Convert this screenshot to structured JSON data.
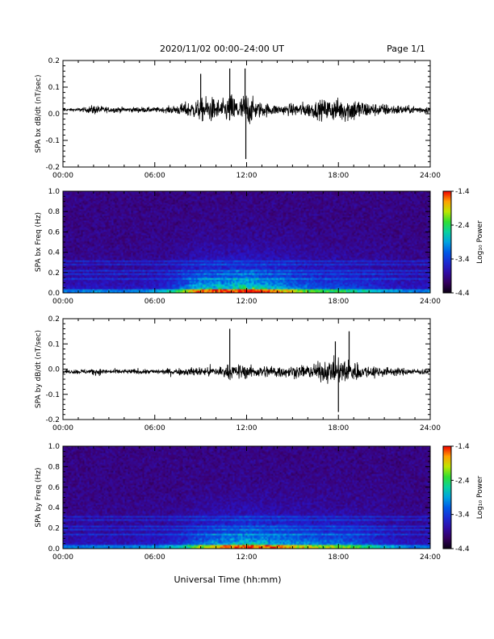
{
  "header": {
    "title": "2020/11/02  00:00–24:00 UT",
    "page": "Page 1/1"
  },
  "footer": {
    "xlabel": "Universal Time (hh:mm)"
  },
  "chart_data": [
    {
      "type": "line",
      "id": "bx-timeseries",
      "ylabel": "SPA bx dB/dt (nT/sec)",
      "xlim": [
        "00:00",
        "24:00"
      ],
      "x_ticks": [
        "00:00",
        "06:00",
        "12:00",
        "18:00",
        "24:00"
      ],
      "ylim": [
        -0.2,
        0.2
      ],
      "y_ticks": [
        "-0.2",
        "-0.1",
        "0.0",
        "0.1",
        "0.2"
      ],
      "color": "#000000",
      "series": [
        {
          "hours": [
            0,
            0.5,
            1,
            1.5,
            2,
            2.5,
            3,
            3.5,
            4,
            4.5,
            5,
            5.5,
            6,
            6.5,
            7,
            7.5,
            8,
            8.5,
            9,
            9.5,
            10,
            10.5,
            11,
            11.5,
            12,
            12.5,
            13,
            13.5,
            14,
            14.5,
            15,
            15.5,
            16,
            16.5,
            17,
            17.5,
            18,
            18.5,
            19,
            19.5,
            20,
            20.5,
            21,
            21.5,
            22,
            22.5,
            23,
            23.5,
            24
          ],
          "envelope": [
            0.01,
            0.01,
            0.015,
            0.02,
            0.04,
            0.03,
            0.02,
            0.025,
            0.02,
            0.02,
            0.025,
            0.02,
            0.02,
            0.02,
            0.03,
            0.04,
            0.06,
            0.07,
            0.09,
            0.11,
            0.09,
            0.08,
            0.13,
            0.09,
            0.15,
            0.08,
            0.06,
            0.05,
            0.04,
            0.04,
            0.05,
            0.06,
            0.06,
            0.07,
            0.08,
            0.09,
            0.09,
            0.1,
            0.1,
            0.08,
            0.06,
            0.05,
            0.05,
            0.04,
            0.04,
            0.03,
            0.03,
            0.03,
            0.03
          ],
          "baseline": 0.015,
          "spikes": [
            {
              "hour": 10.9,
              "value": 0.17
            },
            {
              "hour": 11.9,
              "value": 0.17
            },
            {
              "hour": 11.95,
              "value": -0.17
            },
            {
              "hour": 9.0,
              "value": 0.15
            }
          ]
        }
      ]
    },
    {
      "type": "heatmap",
      "id": "bx-spectrogram",
      "ylabel": "SPA bx Freq (Hz)",
      "xlim": [
        "00:00",
        "24:00"
      ],
      "x_ticks": [
        "00:00",
        "06:00",
        "12:00",
        "18:00",
        "24:00"
      ],
      "ylim": [
        0.0,
        1.0
      ],
      "y_ticks": [
        "0.0",
        "0.2",
        "0.4",
        "0.6",
        "0.8",
        "1.0"
      ],
      "colorbar": {
        "label": "Log₁₀ Power",
        "range": [
          -4.4,
          -1.4
        ],
        "ticks": [
          "-1.4",
          "-2.4",
          "-3.4",
          "-4.4"
        ]
      },
      "activity": {
        "hours": [
          0,
          2,
          4,
          6,
          7,
          8,
          9,
          10,
          11,
          12,
          13,
          14,
          15,
          16,
          17,
          18,
          19,
          20,
          21,
          22,
          23,
          24
        ],
        "level": [
          0.15,
          0.18,
          0.15,
          0.2,
          0.3,
          0.5,
          0.7,
          0.75,
          0.75,
          0.85,
          0.75,
          0.65,
          0.55,
          0.45,
          0.4,
          0.4,
          0.35,
          0.3,
          0.25,
          0.2,
          0.15,
          0.15
        ]
      },
      "bands_hz": [
        0.14,
        0.18,
        0.22,
        0.27,
        0.31
      ]
    },
    {
      "type": "line",
      "id": "by-timeseries",
      "ylabel": "SPA by dB/dt (nT/sec)",
      "xlim": [
        "00:00",
        "24:00"
      ],
      "x_ticks": [
        "00:00",
        "06:00",
        "12:00",
        "18:00",
        "24:00"
      ],
      "ylim": [
        -0.2,
        0.2
      ],
      "y_ticks": [
        "-0.2",
        "-0.1",
        "0.0",
        "0.1",
        "0.2"
      ],
      "color": "#000000",
      "series": [
        {
          "hours": [
            0,
            0.5,
            1,
            1.5,
            2,
            2.5,
            3,
            3.5,
            4,
            4.5,
            5,
            5.5,
            6,
            6.5,
            7,
            7.5,
            8,
            8.5,
            9,
            9.5,
            10,
            10.5,
            11,
            11.5,
            12,
            12.5,
            13,
            13.5,
            14,
            14.5,
            15,
            15.5,
            16,
            16.5,
            17,
            17.5,
            18,
            18.5,
            19,
            19.5,
            20,
            20.5,
            21,
            21.5,
            22,
            22.5,
            23,
            23.5,
            24
          ],
          "envelope": [
            0.015,
            0.015,
            0.02,
            0.02,
            0.03,
            0.025,
            0.02,
            0.02,
            0.02,
            0.02,
            0.025,
            0.02,
            0.02,
            0.02,
            0.03,
            0.03,
            0.03,
            0.035,
            0.04,
            0.045,
            0.05,
            0.05,
            0.06,
            0.06,
            0.06,
            0.05,
            0.05,
            0.05,
            0.055,
            0.05,
            0.05,
            0.05,
            0.06,
            0.07,
            0.08,
            0.1,
            0.1,
            0.11,
            0.09,
            0.06,
            0.05,
            0.05,
            0.04,
            0.035,
            0.03,
            0.03,
            0.025,
            0.025,
            0.025
          ],
          "baseline": -0.01,
          "spikes": [
            {
              "hour": 10.9,
              "value": 0.16
            },
            {
              "hour": 18.7,
              "value": 0.15
            },
            {
              "hour": 17.8,
              "value": 0.11
            },
            {
              "hour": 18.0,
              "value": -0.17
            }
          ]
        }
      ]
    },
    {
      "type": "heatmap",
      "id": "by-spectrogram",
      "ylabel": "SPA by Freq (Hz)",
      "xlim": [
        "00:00",
        "24:00"
      ],
      "x_ticks": [
        "00:00",
        "06:00",
        "12:00",
        "18:00",
        "24:00"
      ],
      "ylim": [
        0.0,
        1.0
      ],
      "y_ticks": [
        "0.0",
        "0.2",
        "0.4",
        "0.6",
        "0.8",
        "1.0"
      ],
      "colorbar": {
        "label": "Log₁₀ Power",
        "range": [
          -4.4,
          -1.4
        ],
        "ticks": [
          "-1.4",
          "-2.4",
          "-3.4",
          "-4.4"
        ]
      },
      "activity": {
        "hours": [
          0,
          2,
          4,
          6,
          7,
          8,
          9,
          10,
          11,
          12,
          13,
          14,
          15,
          16,
          17,
          18,
          19,
          20,
          21,
          22,
          23,
          24
        ],
        "level": [
          0.15,
          0.15,
          0.15,
          0.2,
          0.25,
          0.35,
          0.5,
          0.6,
          0.65,
          0.75,
          0.7,
          0.65,
          0.6,
          0.55,
          0.5,
          0.5,
          0.45,
          0.35,
          0.25,
          0.2,
          0.15,
          0.15
        ]
      },
      "bands_hz": [
        0.14,
        0.18,
        0.22,
        0.27,
        0.31
      ]
    }
  ]
}
